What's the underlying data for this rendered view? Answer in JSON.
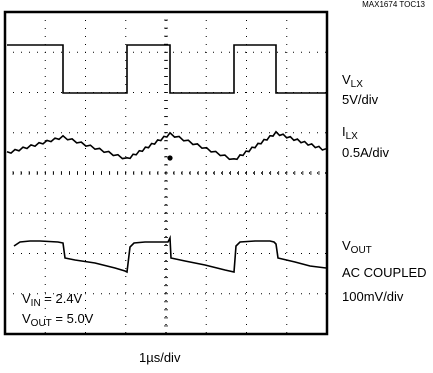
{
  "chart_data": {
    "type": "line",
    "figure_id": "MAX1674 TOC13",
    "x_axis": {
      "label": "1µs/div",
      "divisions": 8
    },
    "y_axis": {
      "divisions": 8
    },
    "grid": "dotted",
    "channels": [
      {
        "name_main": "V",
        "name_sub": "LX",
        "scale": "5V/div"
      },
      {
        "name_main": "I",
        "name_sub": "LX",
        "scale": "0.5A/div"
      },
      {
        "name_main": "V",
        "name_sub": "OUT",
        "coupling": "AC COUPLED",
        "scale": "100mV/div"
      }
    ],
    "conditions": [
      {
        "main": "V",
        "sub": "IN",
        "value": " = 2.4V"
      },
      {
        "main": "V",
        "sub": "OUT",
        "value": " = 5.0V"
      }
    ]
  }
}
